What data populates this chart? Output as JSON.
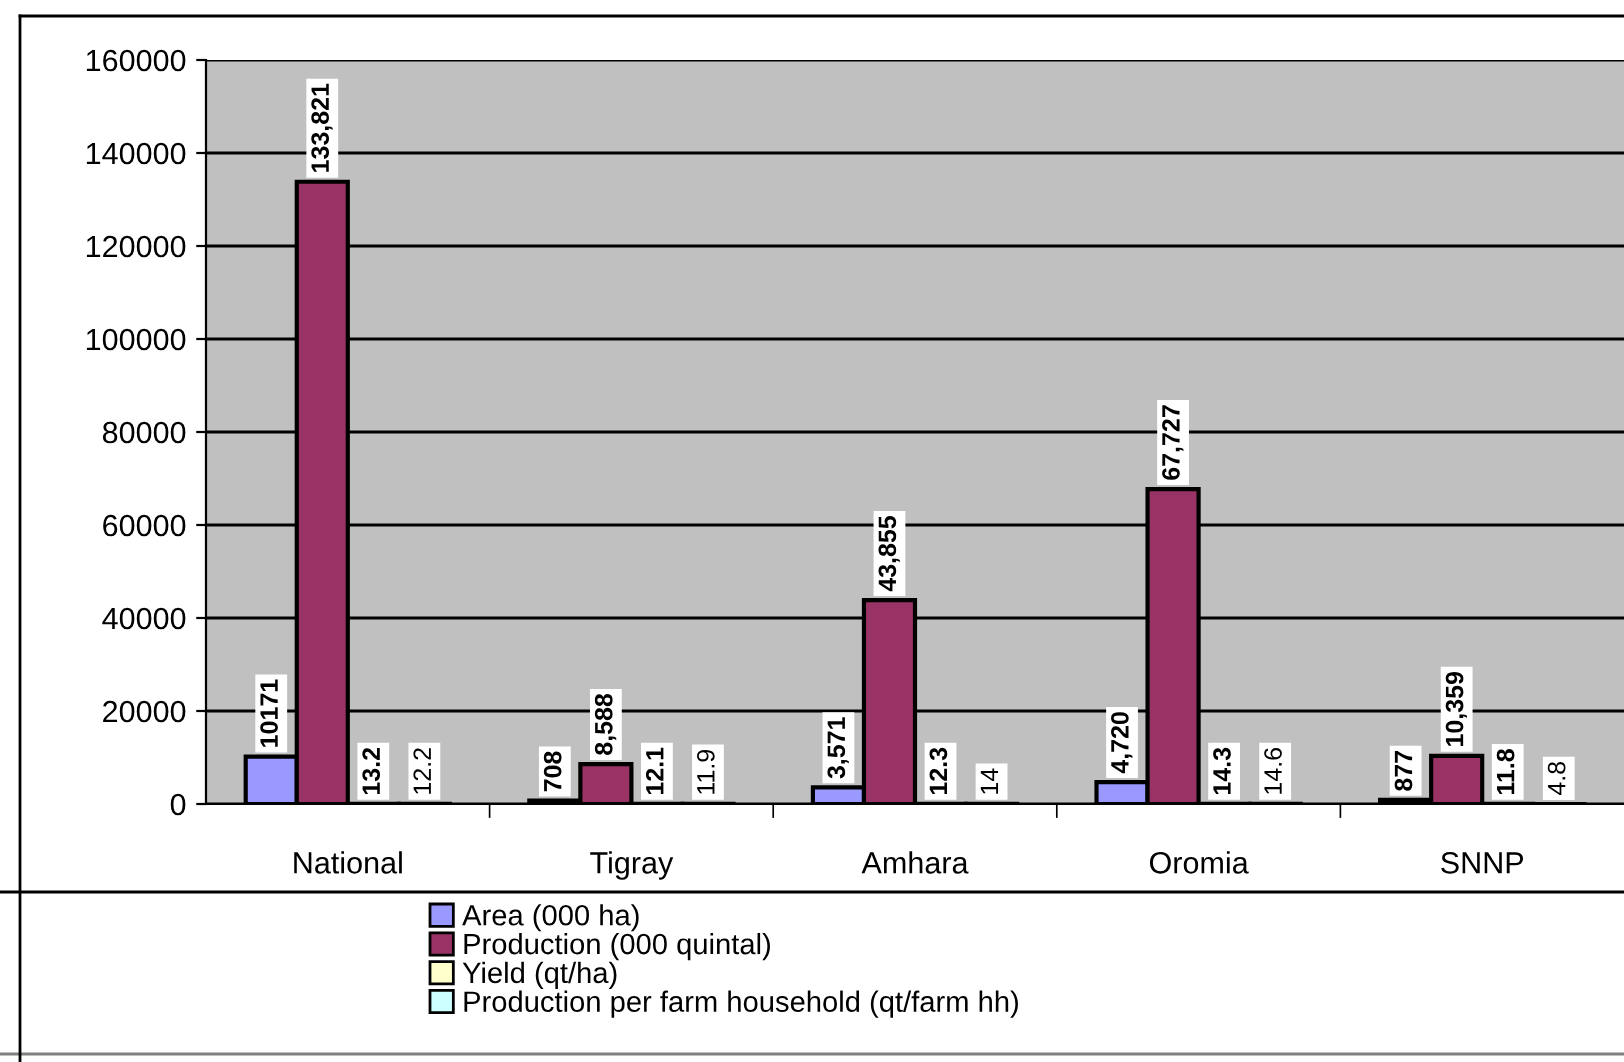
{
  "chart_data": {
    "type": "bar",
    "categories": [
      "National",
      "Tigray",
      "Amhara",
      "Oromia",
      "SNNP"
    ],
    "series": [
      {
        "name": "Area (000 ha)",
        "color": "#9999ff",
        "values": [
          10171,
          708,
          3571,
          4720,
          877
        ],
        "value_labels": [
          "10171",
          "708",
          "3,571",
          "4,720",
          "877"
        ]
      },
      {
        "name": "Production (000 quintal)",
        "color": "#993366",
        "values": [
          133821,
          8588,
          43855,
          67727,
          10359
        ],
        "value_labels": [
          "133,821",
          "8,588",
          "43,855",
          "67,727",
          "10,359"
        ]
      },
      {
        "name": "Yield (qt/ha)",
        "color": "#ffffcc",
        "values": [
          13.2,
          12.1,
          12.3,
          14.3,
          11.8
        ],
        "value_labels": [
          "13.2",
          "12.1",
          "12.3",
          "14.3",
          "11.8"
        ]
      },
      {
        "name": "Production per farm household (qt/farm hh)",
        "color": "#ccffff",
        "values": [
          12.2,
          11.9,
          14,
          14.6,
          4.8
        ],
        "value_labels": [
          "12.2",
          "11.9",
          "14",
          "14.6",
          "4.8"
        ]
      }
    ],
    "ylim": [
      0,
      160000
    ],
    "yticks": [
      0,
      20000,
      40000,
      60000,
      80000,
      100000,
      120000,
      140000,
      160000
    ],
    "grid": "y",
    "legend": "bottom"
  }
}
